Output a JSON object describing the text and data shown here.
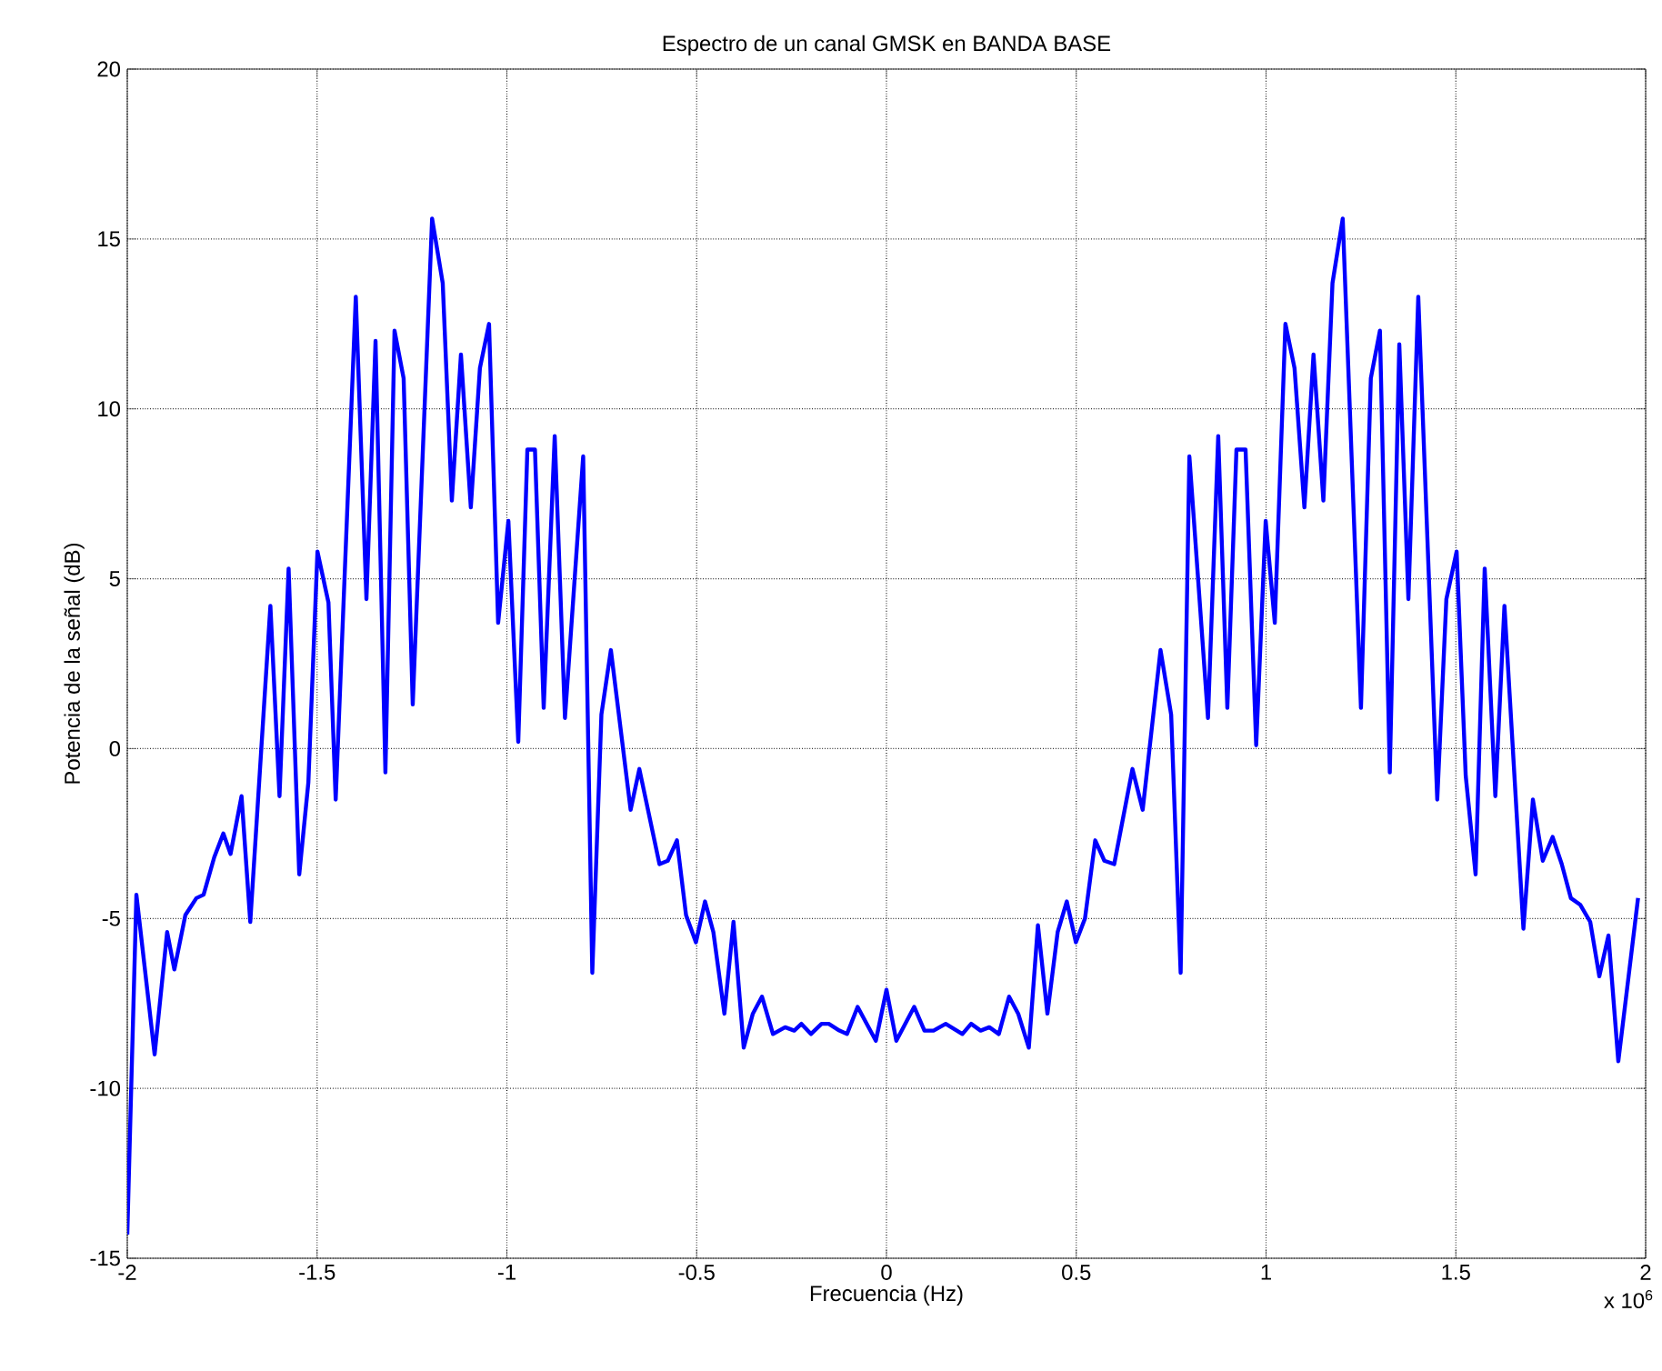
{
  "chart_data": {
    "type": "line",
    "title": "Espectro de un canal GMSK en BANDA BASE",
    "xlabel": "Frecuencia (Hz)",
    "ylabel": "Potencia de la señal (dB)",
    "annotations": [
      "x 10$^{6}$"
    ],
    "xlim": [
      -2,
      2
    ],
    "xticks": [
      -2,
      -1.5,
      -1,
      -0.5,
      0,
      0.5,
      1,
      1.5,
      2
    ],
    "ylim": [
      -15,
      20
    ],
    "yticks": [
      -15,
      -10,
      -5,
      0,
      5,
      10,
      15,
      20
    ],
    "grid": true,
    "marker": "none",
    "line_style": "solid",
    "series": [
      {
        "color": "#0000ff",
        "x": [
          -2.0,
          -1.976,
          -1.928,
          -1.895,
          -1.876,
          -1.847,
          -1.818,
          -1.799,
          -1.771,
          -1.747,
          -1.728,
          -1.699,
          -1.676,
          -1.623,
          -1.599,
          -1.575,
          -1.547,
          -1.523,
          -1.499,
          -1.47,
          -1.451,
          -1.398,
          -1.37,
          -1.346,
          -1.32,
          -1.296,
          -1.272,
          -1.248,
          -1.197,
          -1.169,
          -1.145,
          -1.121,
          -1.095,
          -1.071,
          -1.047,
          -1.023,
          -0.996,
          -0.97,
          -0.946,
          -0.926,
          -0.903,
          -0.874,
          -0.847,
          -0.799,
          -0.775,
          -0.751,
          -0.726,
          -0.674,
          -0.651,
          -0.598,
          -0.576,
          -0.552,
          -0.528,
          -0.502,
          -0.478,
          -0.456,
          -0.427,
          -0.403,
          -0.376,
          -0.352,
          -0.328,
          -0.299,
          -0.267,
          -0.243,
          -0.224,
          -0.199,
          -0.171,
          -0.152,
          -0.124,
          -0.104,
          -0.076,
          -0.028,
          0.0,
          0.026,
          0.073,
          0.1,
          0.124,
          0.156,
          0.2,
          0.223,
          0.248,
          0.271,
          0.296,
          0.323,
          0.347,
          0.375,
          0.399,
          0.424,
          0.451,
          0.475,
          0.499,
          0.523,
          0.55,
          0.574,
          0.6,
          0.648,
          0.675,
          0.722,
          0.75,
          0.775,
          0.798,
          0.847,
          0.874,
          0.898,
          0.922,
          0.946,
          0.974,
          0.999,
          1.023,
          1.051,
          1.075,
          1.101,
          1.125,
          1.151,
          1.175,
          1.202,
          1.25,
          1.276,
          1.3,
          1.326,
          1.351,
          1.375,
          1.401,
          1.451,
          1.475,
          1.502,
          1.526,
          1.552,
          1.576,
          1.604,
          1.628,
          1.678,
          1.703,
          1.729,
          1.755,
          1.779,
          1.803,
          1.828,
          1.854,
          1.878,
          1.902,
          1.928,
          1.98
        ],
        "values": [
          -14.3,
          -4.3,
          -9.0,
          -5.4,
          -6.5,
          -4.9,
          -4.4,
          -4.3,
          -3.2,
          -2.5,
          -3.1,
          -1.4,
          -5.1,
          4.2,
          -1.4,
          5.3,
          -3.7,
          -1.0,
          5.8,
          4.3,
          -1.5,
          13.3,
          4.4,
          12.0,
          -0.7,
          12.3,
          10.9,
          1.3,
          15.6,
          13.7,
          7.3,
          11.6,
          7.1,
          11.2,
          12.5,
          3.7,
          6.7,
          0.2,
          8.8,
          8.8,
          1.2,
          9.2,
          0.9,
          8.6,
          -6.6,
          1.0,
          2.9,
          -1.8,
          -0.6,
          -3.4,
          -3.3,
          -2.7,
          -4.9,
          -5.7,
          -4.5,
          -5.4,
          -7.8,
          -5.1,
          -8.8,
          -7.8,
          -7.3,
          -8.4,
          -8.2,
          -8.3,
          -8.1,
          -8.4,
          -8.1,
          -8.1,
          -8.3,
          -8.4,
          -7.6,
          -8.6,
          -7.1,
          -8.6,
          -7.6,
          -8.3,
          -8.3,
          -8.1,
          -8.4,
          -8.1,
          -8.3,
          -8.2,
          -8.4,
          -7.3,
          -7.8,
          -8.8,
          -5.2,
          -7.8,
          -5.4,
          -4.5,
          -5.7,
          -5.0,
          -2.7,
          -3.3,
          -3.4,
          -0.6,
          -1.8,
          2.9,
          1.0,
          -6.6,
          8.6,
          0.9,
          9.2,
          1.2,
          8.8,
          8.8,
          0.1,
          6.7,
          3.7,
          12.5,
          11.2,
          7.1,
          11.6,
          7.3,
          13.7,
          15.6,
          1.2,
          10.9,
          12.3,
          -0.7,
          11.9,
          4.4,
          13.3,
          -1.5,
          4.4,
          5.8,
          -0.8,
          -3.7,
          5.3,
          -1.4,
          4.2,
          -5.3,
          -1.5,
          -3.3,
          -2.6,
          -3.4,
          -4.4,
          -4.6,
          -5.1,
          -6.7,
          -5.5,
          -9.2,
          -4.4
        ]
      }
    ]
  }
}
